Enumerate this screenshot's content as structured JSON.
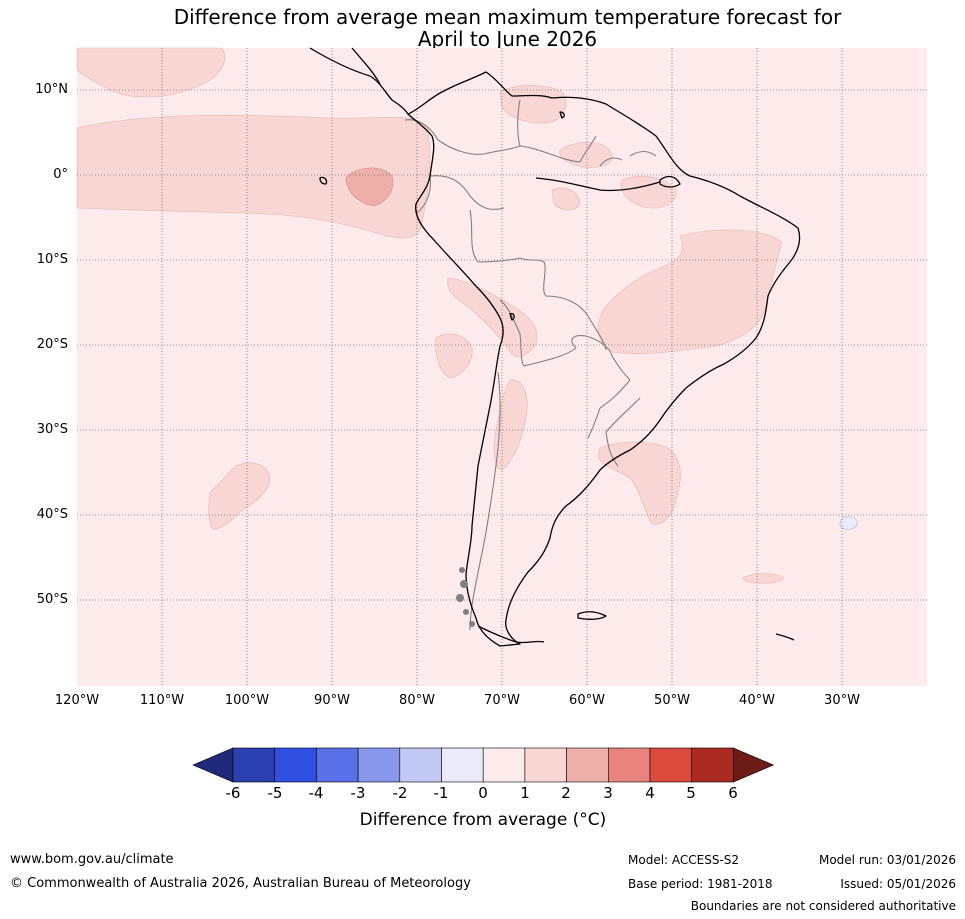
{
  "title": {
    "line1": "Difference from average mean maximum temperature forecast for",
    "line2": "April to June 2026"
  },
  "axes": {
    "lat_labels": [
      "10°N",
      "0°",
      "10°S",
      "20°S",
      "30°S",
      "40°S",
      "50°S"
    ],
    "lon_labels": [
      "120°W",
      "110°W",
      "100°W",
      "90°W",
      "80°W",
      "70°W",
      "60°W",
      "50°W",
      "40°W",
      "30°W"
    ]
  },
  "colorbar": {
    "ticks": [
      "-6",
      "-5",
      "-4",
      "-3",
      "-2",
      "-1",
      "0",
      "1",
      "2",
      "3",
      "4",
      "5",
      "6"
    ],
    "colors": [
      "#1f2a7a",
      "#2a3fb0",
      "#2f4fe0",
      "#5a70e6",
      "#8896ec",
      "#c1c8f4",
      "#e9ebfa",
      "#fcebea",
      "#f7d6d4",
      "#eeaeaa",
      "#e8837d",
      "#dc4a3e",
      "#ab2a22",
      "#6e1c17"
    ],
    "label": "Difference from average (°C)"
  },
  "footer": {
    "website": "www.bom.gov.au/climate",
    "copyright": "© Commonwealth of Australia 2026, Australian Bureau of Meteorology",
    "model": "Model: ACCESS-S2",
    "base_period": "Base period: 1981-2018",
    "model_run": "Model run: 03/01/2026",
    "issued": "Issued: 05/01/2026",
    "disclaimer": "Boundaries are not considered authoritative"
  }
}
